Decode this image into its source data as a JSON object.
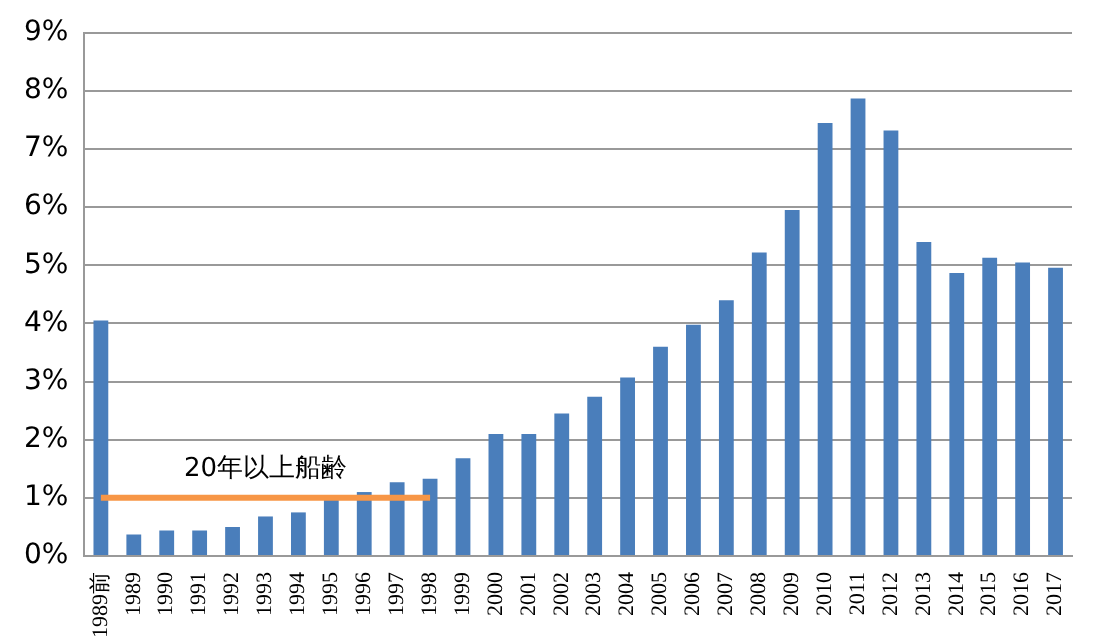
{
  "chart_data": {
    "type": "bar",
    "categories": [
      "1989前",
      "1989",
      "1990",
      "1991",
      "1992",
      "1993",
      "1994",
      "1995",
      "1996",
      "1997",
      "1998",
      "1999",
      "2000",
      "2001",
      "2002",
      "2003",
      "2004",
      "2005",
      "2006",
      "2007",
      "2008",
      "2009",
      "2010",
      "2011",
      "2012",
      "2013",
      "2014",
      "2015",
      "2016",
      "2017"
    ],
    "series": [
      {
        "color": "#4a7ebb",
        "values": [
          4.05,
          0.37,
          0.44,
          0.44,
          0.5,
          0.68,
          0.75,
          0.97,
          1.1,
          1.27,
          1.33,
          1.68,
          2.1,
          2.1,
          2.45,
          2.74,
          3.07,
          3.6,
          3.98,
          4.4,
          5.22,
          5.95,
          7.45,
          7.87,
          7.32,
          5.4,
          4.87,
          5.13,
          5.05,
          4.96
        ]
      },
      {
        "type": "line",
        "name": "20年以上船齢",
        "color": "#f79646",
        "values": [
          1,
          1,
          1,
          1,
          1,
          1,
          1,
          1,
          1,
          1,
          1,
          null,
          null,
          null,
          null,
          null,
          null,
          null,
          null,
          null,
          null,
          null,
          null,
          null,
          null,
          null,
          null,
          null,
          null,
          null
        ]
      }
    ],
    "ylim": [
      0,
      9
    ],
    "yticks": [
      {
        "value": 0,
        "label": "0%"
      },
      {
        "value": 1,
        "label": "1%"
      },
      {
        "value": 2,
        "label": "2%"
      },
      {
        "value": 3,
        "label": "3%"
      },
      {
        "value": 4,
        "label": "4%"
      },
      {
        "value": 5,
        "label": "5%"
      },
      {
        "value": 6,
        "label": "6%"
      },
      {
        "value": 7,
        "label": "7%"
      },
      {
        "value": 8,
        "label": "8%"
      },
      {
        "value": 9,
        "label": "9%"
      }
    ],
    "grid": "y",
    "legend": false,
    "marker": "none"
  }
}
